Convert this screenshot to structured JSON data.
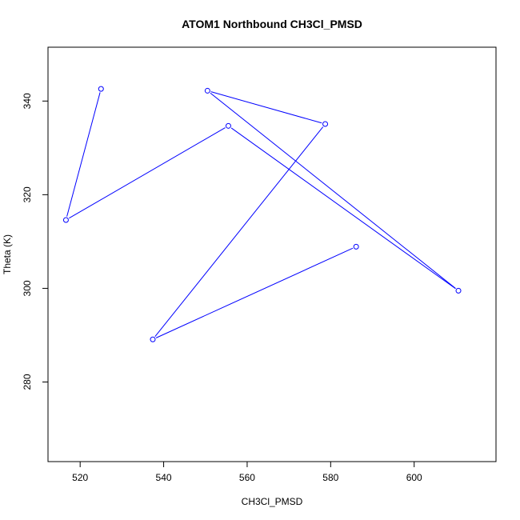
{
  "chart_data": {
    "type": "line",
    "title": "ATOM1 Northbound CH3Cl_PMSD",
    "xlabel": "CH3Cl_PMSD",
    "ylabel": "Theta (K)",
    "xlim": [
      512.3,
      619.6
    ],
    "ylim": [
      263.0,
      351.5
    ],
    "xticks": [
      520,
      540,
      560,
      580,
      600
    ],
    "yticks": [
      280,
      300,
      320,
      340
    ],
    "grid": false,
    "series": [
      {
        "color": "#0000ff",
        "marker": "open-circle",
        "x": [
          525.0,
          516.6,
          555.5,
          610.6,
          550.5,
          578.7,
          537.4,
          586.1
        ],
        "y": [
          342.6,
          314.6,
          334.7,
          299.5,
          342.2,
          335.1,
          289.1,
          308.9
        ]
      }
    ]
  }
}
